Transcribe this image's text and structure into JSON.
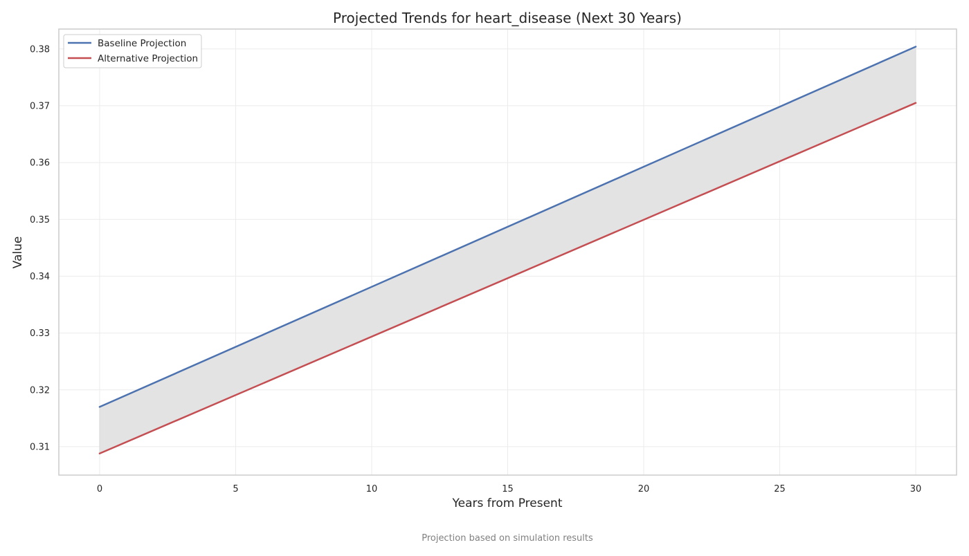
{
  "chart_data": {
    "type": "line",
    "title": "Projected Trends for heart_disease (Next 30 Years)",
    "xlabel": "Years from Present",
    "ylabel": "Value",
    "caption": "Projection based on simulation results",
    "x": [
      0,
      30
    ],
    "series": [
      {
        "name": "Baseline Projection",
        "color": "#4c72b0",
        "values": [
          0.317,
          0.3804
        ]
      },
      {
        "name": "Alternative Projection",
        "color": "#c44e52",
        "values": [
          0.3088,
          0.3705
        ]
      }
    ],
    "fill_between": {
      "series": [
        0,
        1
      ],
      "color": "#e3e3e3"
    },
    "xlim": [
      -1.5,
      31.5
    ],
    "ylim": [
      0.305,
      0.3835
    ],
    "xticks": [
      0,
      5,
      10,
      15,
      20,
      25,
      30
    ],
    "yticks": [
      0.31,
      0.32,
      0.33,
      0.34,
      0.35,
      0.36,
      0.37,
      0.38
    ],
    "ytick_labels": [
      "0.31",
      "0.32",
      "0.33",
      "0.34",
      "0.35",
      "0.36",
      "0.37",
      "0.38"
    ],
    "grid": true,
    "legend_position": "top-left"
  }
}
